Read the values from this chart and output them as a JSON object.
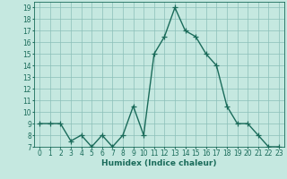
{
  "x": [
    0,
    1,
    2,
    3,
    4,
    5,
    6,
    7,
    8,
    9,
    10,
    11,
    12,
    13,
    14,
    15,
    16,
    17,
    18,
    19,
    20,
    21,
    22,
    23
  ],
  "y": [
    9,
    9,
    9,
    7.5,
    8,
    7,
    8,
    7,
    8,
    10.5,
    8,
    15,
    16.5,
    19,
    17,
    16.5,
    15,
    14,
    10.5,
    9,
    9,
    8,
    7,
    7
  ],
  "line_color": "#1a6b5a",
  "marker": "+",
  "marker_size": 4,
  "background_color": "#c5e8e0",
  "grid_color": "#8bbfb8",
  "xlabel": "Humidex (Indice chaleur)",
  "xlim": [
    -0.5,
    23.5
  ],
  "ylim": [
    7,
    19.5
  ],
  "yticks": [
    7,
    8,
    9,
    10,
    11,
    12,
    13,
    14,
    15,
    16,
    17,
    18,
    19
  ],
  "xticks": [
    0,
    1,
    2,
    3,
    4,
    5,
    6,
    7,
    8,
    9,
    10,
    11,
    12,
    13,
    14,
    15,
    16,
    17,
    18,
    19,
    20,
    21,
    22,
    23
  ],
  "xlabel_fontsize": 6.5,
  "tick_fontsize": 5.5,
  "linewidth": 1.0,
  "markeredgewidth": 0.9
}
